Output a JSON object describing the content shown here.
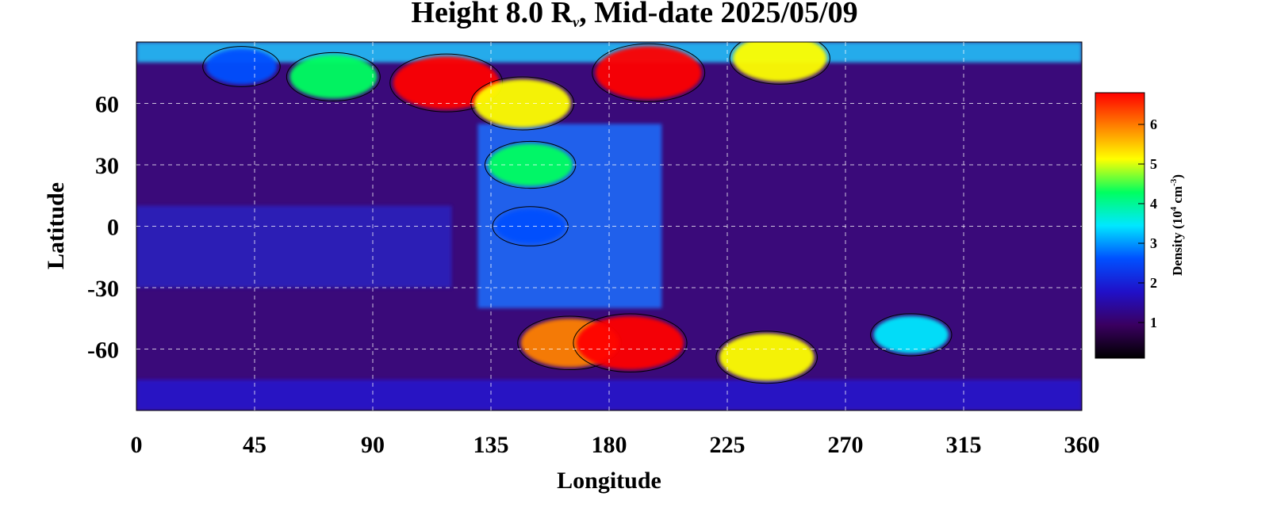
{
  "chart_data": {
    "type": "heatmap",
    "title": {
      "prefix": "Height 8.0 R",
      "subscript": "v",
      "suffix": ", Mid-date 2025/05/09"
    },
    "xlabel": "Longitude",
    "ylabel": "Latitude",
    "xlim": [
      0,
      360
    ],
    "ylim": [
      -90,
      90
    ],
    "xticks": [
      0,
      45,
      90,
      135,
      180,
      225,
      270,
      315,
      360
    ],
    "yticks": [
      60,
      30,
      0,
      -30,
      -60
    ],
    "grid": true,
    "colorbar": {
      "label_prefix": "Density (10",
      "label_sup1": "4",
      "label_mid": " cm",
      "label_sup2": "-3",
      "label_suffix": ")",
      "range": [
        0.1,
        6.8
      ],
      "ticks": [
        1,
        2,
        3,
        4,
        5,
        6
      ],
      "colors": [
        "#000000",
        "#3a0060",
        "#2010c8",
        "#0050ff",
        "#00e8ff",
        "#00ff60",
        "#ffff00",
        "#ff8000",
        "#ff0000"
      ]
    },
    "features": [
      {
        "lon": 118,
        "lat": 70,
        "value": 6.5
      },
      {
        "lon": 147,
        "lat": 60,
        "value": 5.5
      },
      {
        "lon": 75,
        "lat": 73,
        "value": 4.5
      },
      {
        "lon": 195,
        "lat": 75,
        "value": 6.5
      },
      {
        "lon": 245,
        "lat": 82,
        "value": 5.2
      },
      {
        "lon": 150,
        "lat": 30,
        "value": 4.2
      },
      {
        "lon": 165,
        "lat": -57,
        "value": 5.6
      },
      {
        "lon": 188,
        "lat": -57,
        "value": 6.6
      },
      {
        "lon": 240,
        "lat": -64,
        "value": 5.3
      },
      {
        "lon": 295,
        "lat": -53,
        "value": 3.2
      },
      {
        "lon": 40,
        "lat": 78,
        "value": 2.8
      },
      {
        "lon": 150,
        "lat": 0,
        "value": 2.6
      }
    ]
  }
}
